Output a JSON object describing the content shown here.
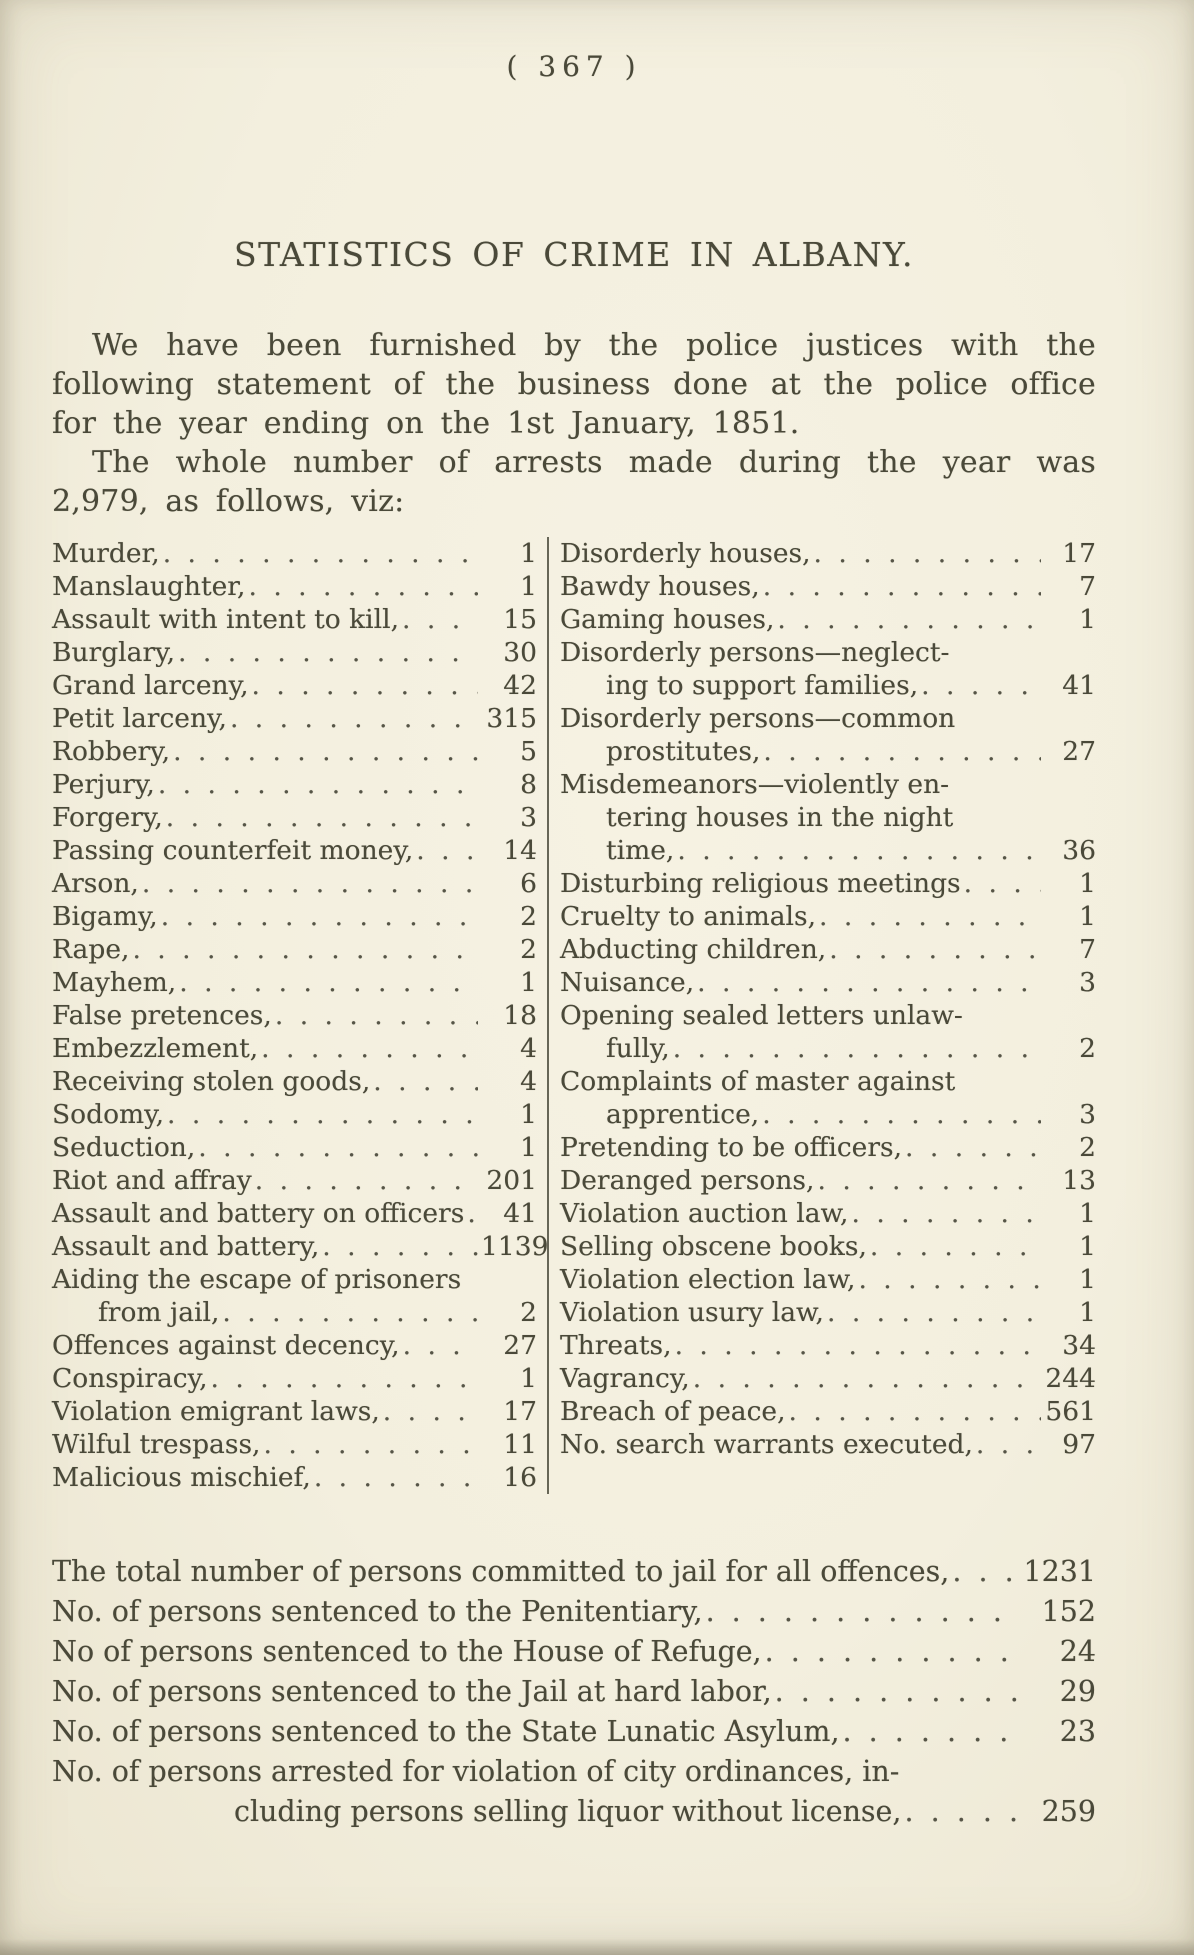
{
  "ink_color": "#4a4939",
  "paper_color": "#f4f0e1",
  "page_header": {
    "page_number": "( 367 )"
  },
  "article": {
    "title": "STATISTICS OF CRIME IN ALBANY.",
    "paragraphs": [
      "We have been furnished by the police justices with the following statement of the business done at the police office for the year ending on the 1st January, 1851.",
      "The whole number of arrests made during the year was 2,979, as follows, viz:"
    ]
  },
  "arrest_table": {
    "left_column": [
      {
        "lines": [
          "Murder,"
        ],
        "value": "1"
      },
      {
        "lines": [
          "Manslaughter,"
        ],
        "value": "1"
      },
      {
        "lines": [
          "Assault with intent to kill,"
        ],
        "value": "15"
      },
      {
        "lines": [
          "Burglary,"
        ],
        "value": "30"
      },
      {
        "lines": [
          "Grand larceny,"
        ],
        "value": "42"
      },
      {
        "lines": [
          "Petit larceny,"
        ],
        "value": "315"
      },
      {
        "lines": [
          "Robbery,"
        ],
        "value": "5"
      },
      {
        "lines": [
          "Perjury,"
        ],
        "value": "8"
      },
      {
        "lines": [
          "Forgery,"
        ],
        "value": "3"
      },
      {
        "lines": [
          "Passing counterfeit money,"
        ],
        "value": "14"
      },
      {
        "lines": [
          "Arson,"
        ],
        "value": "6"
      },
      {
        "lines": [
          "Bigamy,"
        ],
        "value": "2"
      },
      {
        "lines": [
          "Rape,"
        ],
        "value": "2"
      },
      {
        "lines": [
          "Mayhem,"
        ],
        "value": "1"
      },
      {
        "lines": [
          "False pretences,"
        ],
        "value": "18"
      },
      {
        "lines": [
          "Embezzlement,"
        ],
        "value": "4"
      },
      {
        "lines": [
          "Receiving stolen goods,"
        ],
        "value": "4"
      },
      {
        "lines": [
          "Sodomy,"
        ],
        "value": "1"
      },
      {
        "lines": [
          "Seduction,"
        ],
        "value": "1"
      },
      {
        "lines": [
          "Riot and affray"
        ],
        "value": "201"
      },
      {
        "lines": [
          "Assault and battery on officers"
        ],
        "value": "41"
      },
      {
        "lines": [
          "Assault and battery,"
        ],
        "value": "1139"
      },
      {
        "lines": [
          "Aiding the escape of prisoners",
          "from jail,"
        ],
        "value": "2"
      },
      {
        "lines": [
          "Offences against decency,"
        ],
        "value": "27"
      },
      {
        "lines": [
          "Conspiracy,"
        ],
        "value": "1"
      },
      {
        "lines": [
          "Violation emigrant laws,"
        ],
        "value": "17"
      },
      {
        "lines": [
          "Wilful trespass,"
        ],
        "value": "11"
      },
      {
        "lines": [
          "Malicious mischief,"
        ],
        "value": "16"
      }
    ],
    "right_column": [
      {
        "lines": [
          "Disorderly houses,"
        ],
        "value": "17"
      },
      {
        "lines": [
          "Bawdy houses,"
        ],
        "value": "7"
      },
      {
        "lines": [
          "Gaming houses,"
        ],
        "value": "1"
      },
      {
        "lines": [
          "Disorderly persons—neglect-",
          "ing to support families,"
        ],
        "value": "41"
      },
      {
        "lines": [
          "Disorderly persons—common",
          "prostitutes,"
        ],
        "value": "27"
      },
      {
        "lines": [
          "Misdemeanors—violently en-",
          "tering houses in the night",
          "time,"
        ],
        "value": "36"
      },
      {
        "lines": [
          "Disturbing religious meetings"
        ],
        "value": "1"
      },
      {
        "lines": [
          "Cruelty to animals,"
        ],
        "value": "1"
      },
      {
        "lines": [
          "Abducting children,"
        ],
        "value": "7"
      },
      {
        "lines": [
          "Nuisance,"
        ],
        "value": "3"
      },
      {
        "lines": [
          "Opening sealed letters unlaw-",
          "fully,"
        ],
        "value": "2"
      },
      {
        "lines": [
          "Complaints of master against",
          "apprentice,"
        ],
        "value": "3"
      },
      {
        "lines": [
          "Pretending to be officers,"
        ],
        "value": "2"
      },
      {
        "lines": [
          "Deranged persons,"
        ],
        "value": "13"
      },
      {
        "lines": [
          "Violation auction law,"
        ],
        "value": "1"
      },
      {
        "lines": [
          "Selling obscene books,"
        ],
        "value": "1"
      },
      {
        "lines": [
          "Violation election law,"
        ],
        "value": "1"
      },
      {
        "lines": [
          "Violation usury law,"
        ],
        "value": "1"
      },
      {
        "lines": [
          "Threats,"
        ],
        "value": "34"
      },
      {
        "lines": [
          "Vagrancy,"
        ],
        "value": "244"
      },
      {
        "lines": [
          "Breach of peace,"
        ],
        "value": "561"
      },
      {
        "lines": [
          "No. search warrants executed,"
        ],
        "value": "97"
      }
    ]
  },
  "summary": [
    {
      "lines": [
        "The total number of persons committed to jail for all offences,"
      ],
      "value": "1231"
    },
    {
      "lines": [
        "No. of persons sentenced to the Penitentiary,"
      ],
      "value": "152"
    },
    {
      "lines": [
        "No of persons sentenced to the House of Refuge,"
      ],
      "value": "24"
    },
    {
      "lines": [
        "No. of persons sentenced to the Jail at hard labor,"
      ],
      "value": "29"
    },
    {
      "lines": [
        "No. of persons sentenced to the State Lunatic Asylum,"
      ],
      "value": "23"
    },
    {
      "lines": [
        "No. of persons arrested for violation of city ordinances, in-",
        "cluding persons selling liquor without license,"
      ],
      "value": "259"
    }
  ]
}
